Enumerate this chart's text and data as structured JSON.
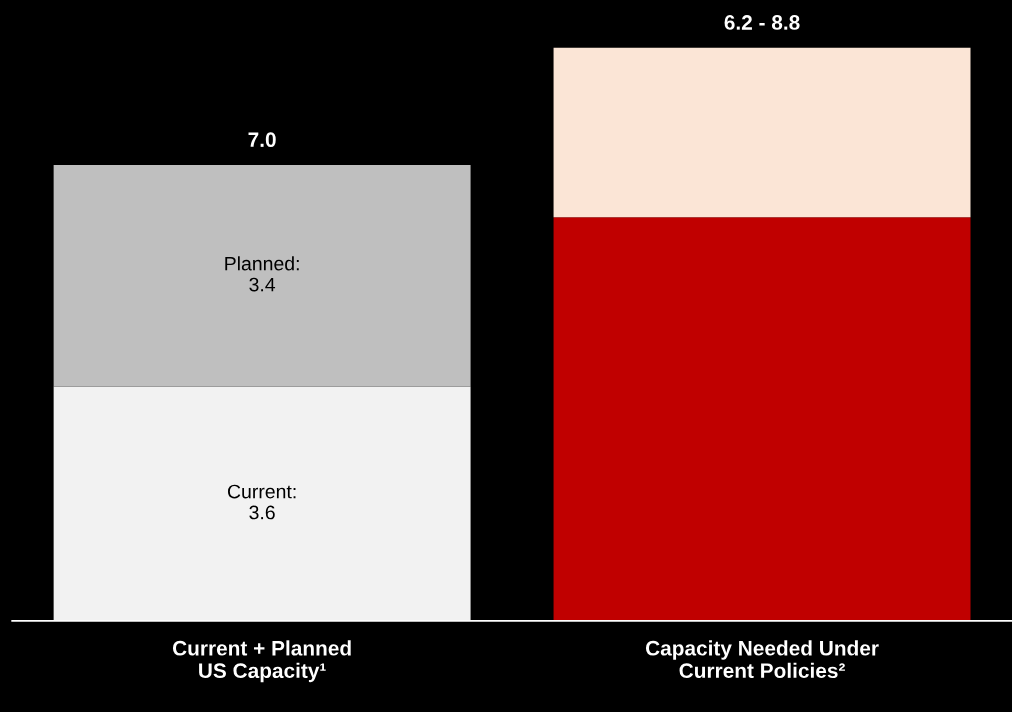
{
  "chart_data": {
    "type": "bar",
    "stacked": true,
    "categories": [
      "Current + Planned\nUS Capacity¹",
      "Capacity Needed Under\nCurrent Policies²"
    ],
    "series": [
      {
        "colors": [
          "#f2f2f2",
          "#c00000"
        ],
        "values": [
          3.6,
          6.2
        ],
        "value_labels": [
          "Current:\n3.6",
          null
        ]
      },
      {
        "colors": [
          "#bfbfbf",
          "#fbe5d6"
        ],
        "values": [
          3.4,
          2.6
        ],
        "value_labels": [
          "Planned:\n3.4",
          null
        ]
      }
    ],
    "totals": [
      "7.0",
      "6.2 - 8.8"
    ],
    "grid": false,
    "legend": false
  }
}
